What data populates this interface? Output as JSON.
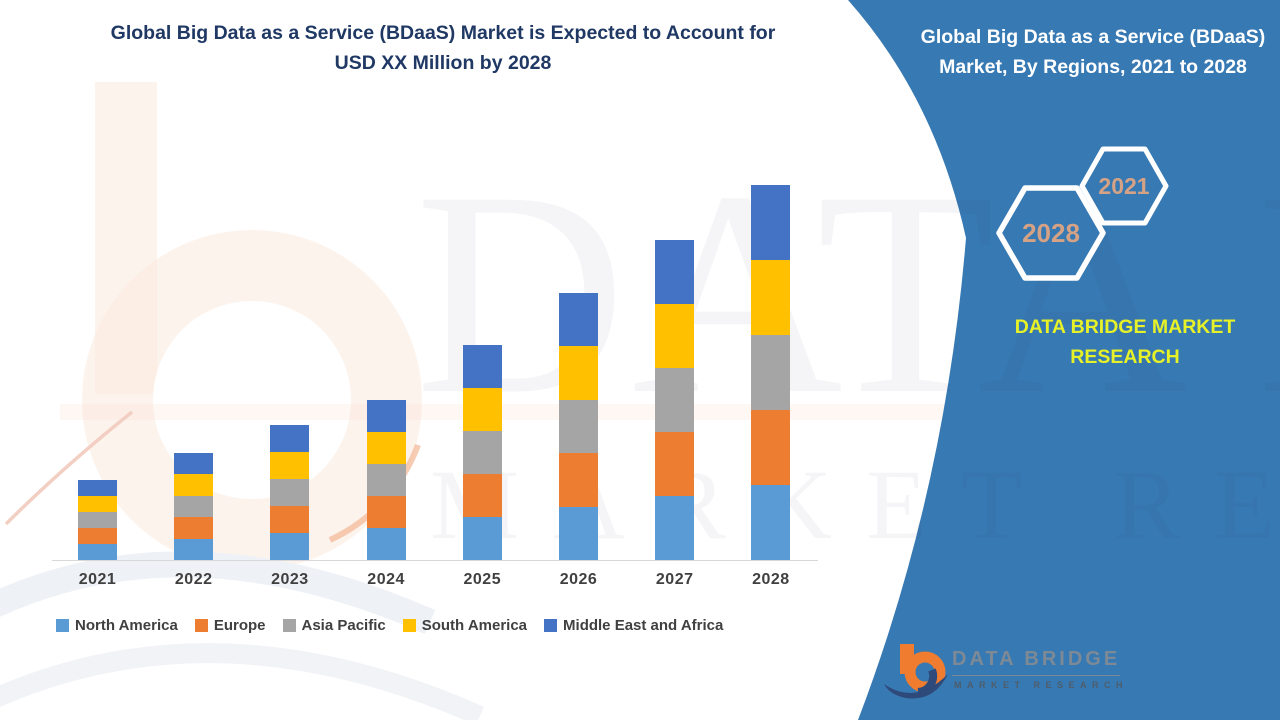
{
  "header": {
    "title_line1": "Global Big Data as a Service (BDaaS) Market is Expected to Account for",
    "title_line2": "USD XX Million by 2028"
  },
  "right_panel": {
    "title_line1": "Global Big Data as a Service (BDaaS)",
    "title_line2": "Market, By Regions, 2021 to 2028",
    "hexagon_back_label": "2021",
    "hexagon_front_label": "2028",
    "brand_line1": "DATA BRIDGE MARKET",
    "brand_line2": "RESEARCH",
    "panel_color": "#3779b3",
    "hexagon_year_color": "#d6a285",
    "brand_text_color": "#e7f127"
  },
  "watermark": {
    "line1": "DATA BRIDGE",
    "line2": "MARKET RESEARCH"
  },
  "footer_logo": {
    "wordmark": "DATA BRIDGE",
    "tagline": "MARKET RESEARCH",
    "orange": "#f07d2f",
    "navy": "#2e4a7a"
  },
  "chart_data": {
    "type": "bar",
    "stacked": true,
    "title": "Global Big Data as a Service (BDaaS) Market, By Regions, 2021 to 2028",
    "categories": [
      "2021",
      "2022",
      "2023",
      "2024",
      "2025",
      "2026",
      "2027",
      "2028"
    ],
    "series": [
      {
        "name": "North America",
        "color": "#5B9BD5",
        "values": [
          16,
          21.5,
          27,
          32,
          43,
          53.5,
          64,
          75
        ]
      },
      {
        "name": "Europe",
        "color": "#ED7D31",
        "values": [
          16,
          21.5,
          27,
          32,
          43,
          53.5,
          64,
          75
        ]
      },
      {
        "name": "Asia Pacific",
        "color": "#A5A5A5",
        "values": [
          16,
          21.5,
          27,
          32,
          43,
          53.5,
          64,
          75
        ]
      },
      {
        "name": "South America",
        "color": "#FFC000",
        "values": [
          16,
          21.5,
          27,
          32,
          43,
          53.5,
          64,
          75
        ]
      },
      {
        "name": "Middle East and Africa",
        "color": "#4472C4",
        "values": [
          16,
          21.5,
          27,
          32,
          43,
          53.5,
          64,
          75
        ]
      }
    ],
    "value_unit": "relative visual units (actual market values masked as USD XX Million)",
    "xlabel": "",
    "ylabel": "",
    "y_axis_visible": false,
    "gridlines": false,
    "legend_position": "bottom"
  }
}
